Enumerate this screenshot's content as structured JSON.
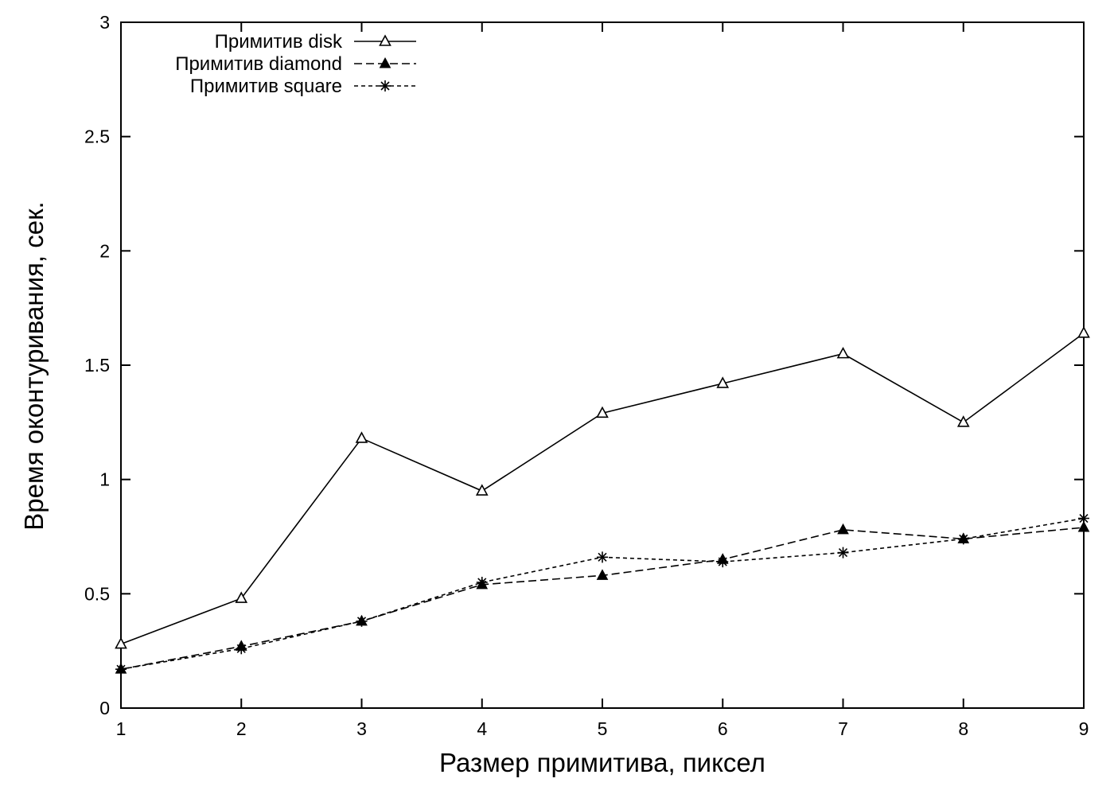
{
  "chart_data": {
    "type": "line",
    "xlabel": "Размер примитива, пиксел",
    "ylabel": "Время оконтуривания, сек.",
    "xlim": [
      1,
      9
    ],
    "ylim": [
      0,
      3
    ],
    "xticks": [
      "1",
      "2",
      "3",
      "4",
      "5",
      "6",
      "7",
      "8",
      "9"
    ],
    "yticks": [
      "0",
      "0.5",
      "1",
      "1.5",
      "2",
      "2.5",
      "3"
    ],
    "grid": false,
    "legend_position": "top-left",
    "x": [
      1,
      2,
      3,
      4,
      5,
      6,
      7,
      8,
      9
    ],
    "series": [
      {
        "name": "Примитив disk",
        "marker": "open-triangle",
        "line": "solid",
        "values": [
          0.28,
          0.48,
          1.18,
          0.95,
          1.29,
          1.42,
          1.55,
          1.25,
          1.64
        ]
      },
      {
        "name": "Примитив diamond",
        "marker": "filled-triangle",
        "line": "dashed",
        "values": [
          0.17,
          0.27,
          0.38,
          0.54,
          0.58,
          0.65,
          0.78,
          0.74,
          0.79
        ]
      },
      {
        "name": "Примитив square",
        "marker": "asterisk",
        "line": "dotted",
        "values": [
          0.17,
          0.26,
          0.38,
          0.55,
          0.66,
          0.64,
          0.68,
          0.74,
          0.83
        ]
      }
    ]
  }
}
